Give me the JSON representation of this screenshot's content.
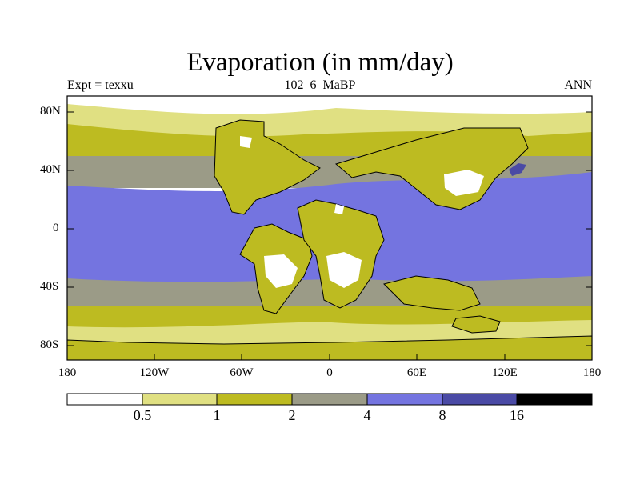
{
  "title": "Evaporation (in mm/day)",
  "subtitle_left": "Expt = texxu",
  "subtitle_center": "102_6_MaBP",
  "subtitle_right": "ANN",
  "map": {
    "type": "filled-contour-map",
    "variable": "Evaporation",
    "units": "mm/day",
    "lat_ticks": [
      "80N",
      "40N",
      "0",
      "40S",
      "80S"
    ],
    "lon_ticks": [
      "180",
      "120W",
      "60W",
      "0",
      "60E",
      "120E",
      "180"
    ]
  },
  "colorbar": {
    "levels": [
      "0.5",
      "1",
      "2",
      "4",
      "8",
      "16"
    ],
    "colors": [
      "#ffffff",
      "#e0e082",
      "#bdbb21",
      "#9b9b87",
      "#7474e0",
      "#4a4aa5",
      "#000000"
    ]
  }
}
